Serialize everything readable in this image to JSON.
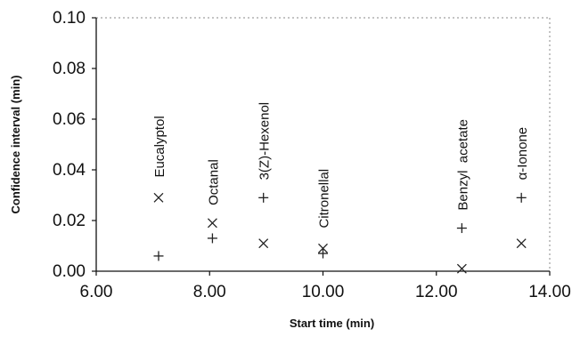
{
  "chart_data": {
    "type": "scatter",
    "title": "",
    "xlabel": "Start time (min)",
    "ylabel": "Confidence interval (min)",
    "xlim": [
      6.0,
      14.0
    ],
    "ylim": [
      0.0,
      0.1
    ],
    "x_ticks": [
      "6.00",
      "8.00",
      "10.00",
      "12.00",
      "14.00"
    ],
    "y_ticks": [
      "0.00",
      "0.02",
      "0.04",
      "0.06",
      "0.08",
      "0.10"
    ],
    "grid": false,
    "legend": "none",
    "series": [
      {
        "marker": "x",
        "points": [
          {
            "x": 7.1,
            "y": 0.029
          },
          {
            "x": 8.05,
            "y": 0.019
          },
          {
            "x": 8.95,
            "y": 0.011
          },
          {
            "x": 10.0,
            "y": 0.009
          },
          {
            "x": 12.45,
            "y": 0.001
          },
          {
            "x": 13.5,
            "y": 0.011
          }
        ]
      },
      {
        "marker": "plus",
        "points": [
          {
            "x": 7.1,
            "y": 0.006
          },
          {
            "x": 8.05,
            "y": 0.013
          },
          {
            "x": 8.95,
            "y": 0.029
          },
          {
            "x": 10.0,
            "y": 0.007
          },
          {
            "x": 12.45,
            "y": 0.017
          },
          {
            "x": 13.5,
            "y": 0.029
          }
        ]
      }
    ],
    "annotations": [
      {
        "text": "Eucalyptol",
        "x": 7.1,
        "y": 0.037
      },
      {
        "text": "Octanal",
        "x": 8.05,
        "y": 0.026
      },
      {
        "text": "3(Z)-Hexenol",
        "x": 8.95,
        "y": 0.036
      },
      {
        "text": "Citronellal",
        "x": 10.0,
        "y": 0.017
      },
      {
        "text": "Benzyl  acetate",
        "x": 12.45,
        "y": 0.024
      },
      {
        "text": "α-Ionone",
        "x": 13.5,
        "y": 0.036
      }
    ]
  }
}
